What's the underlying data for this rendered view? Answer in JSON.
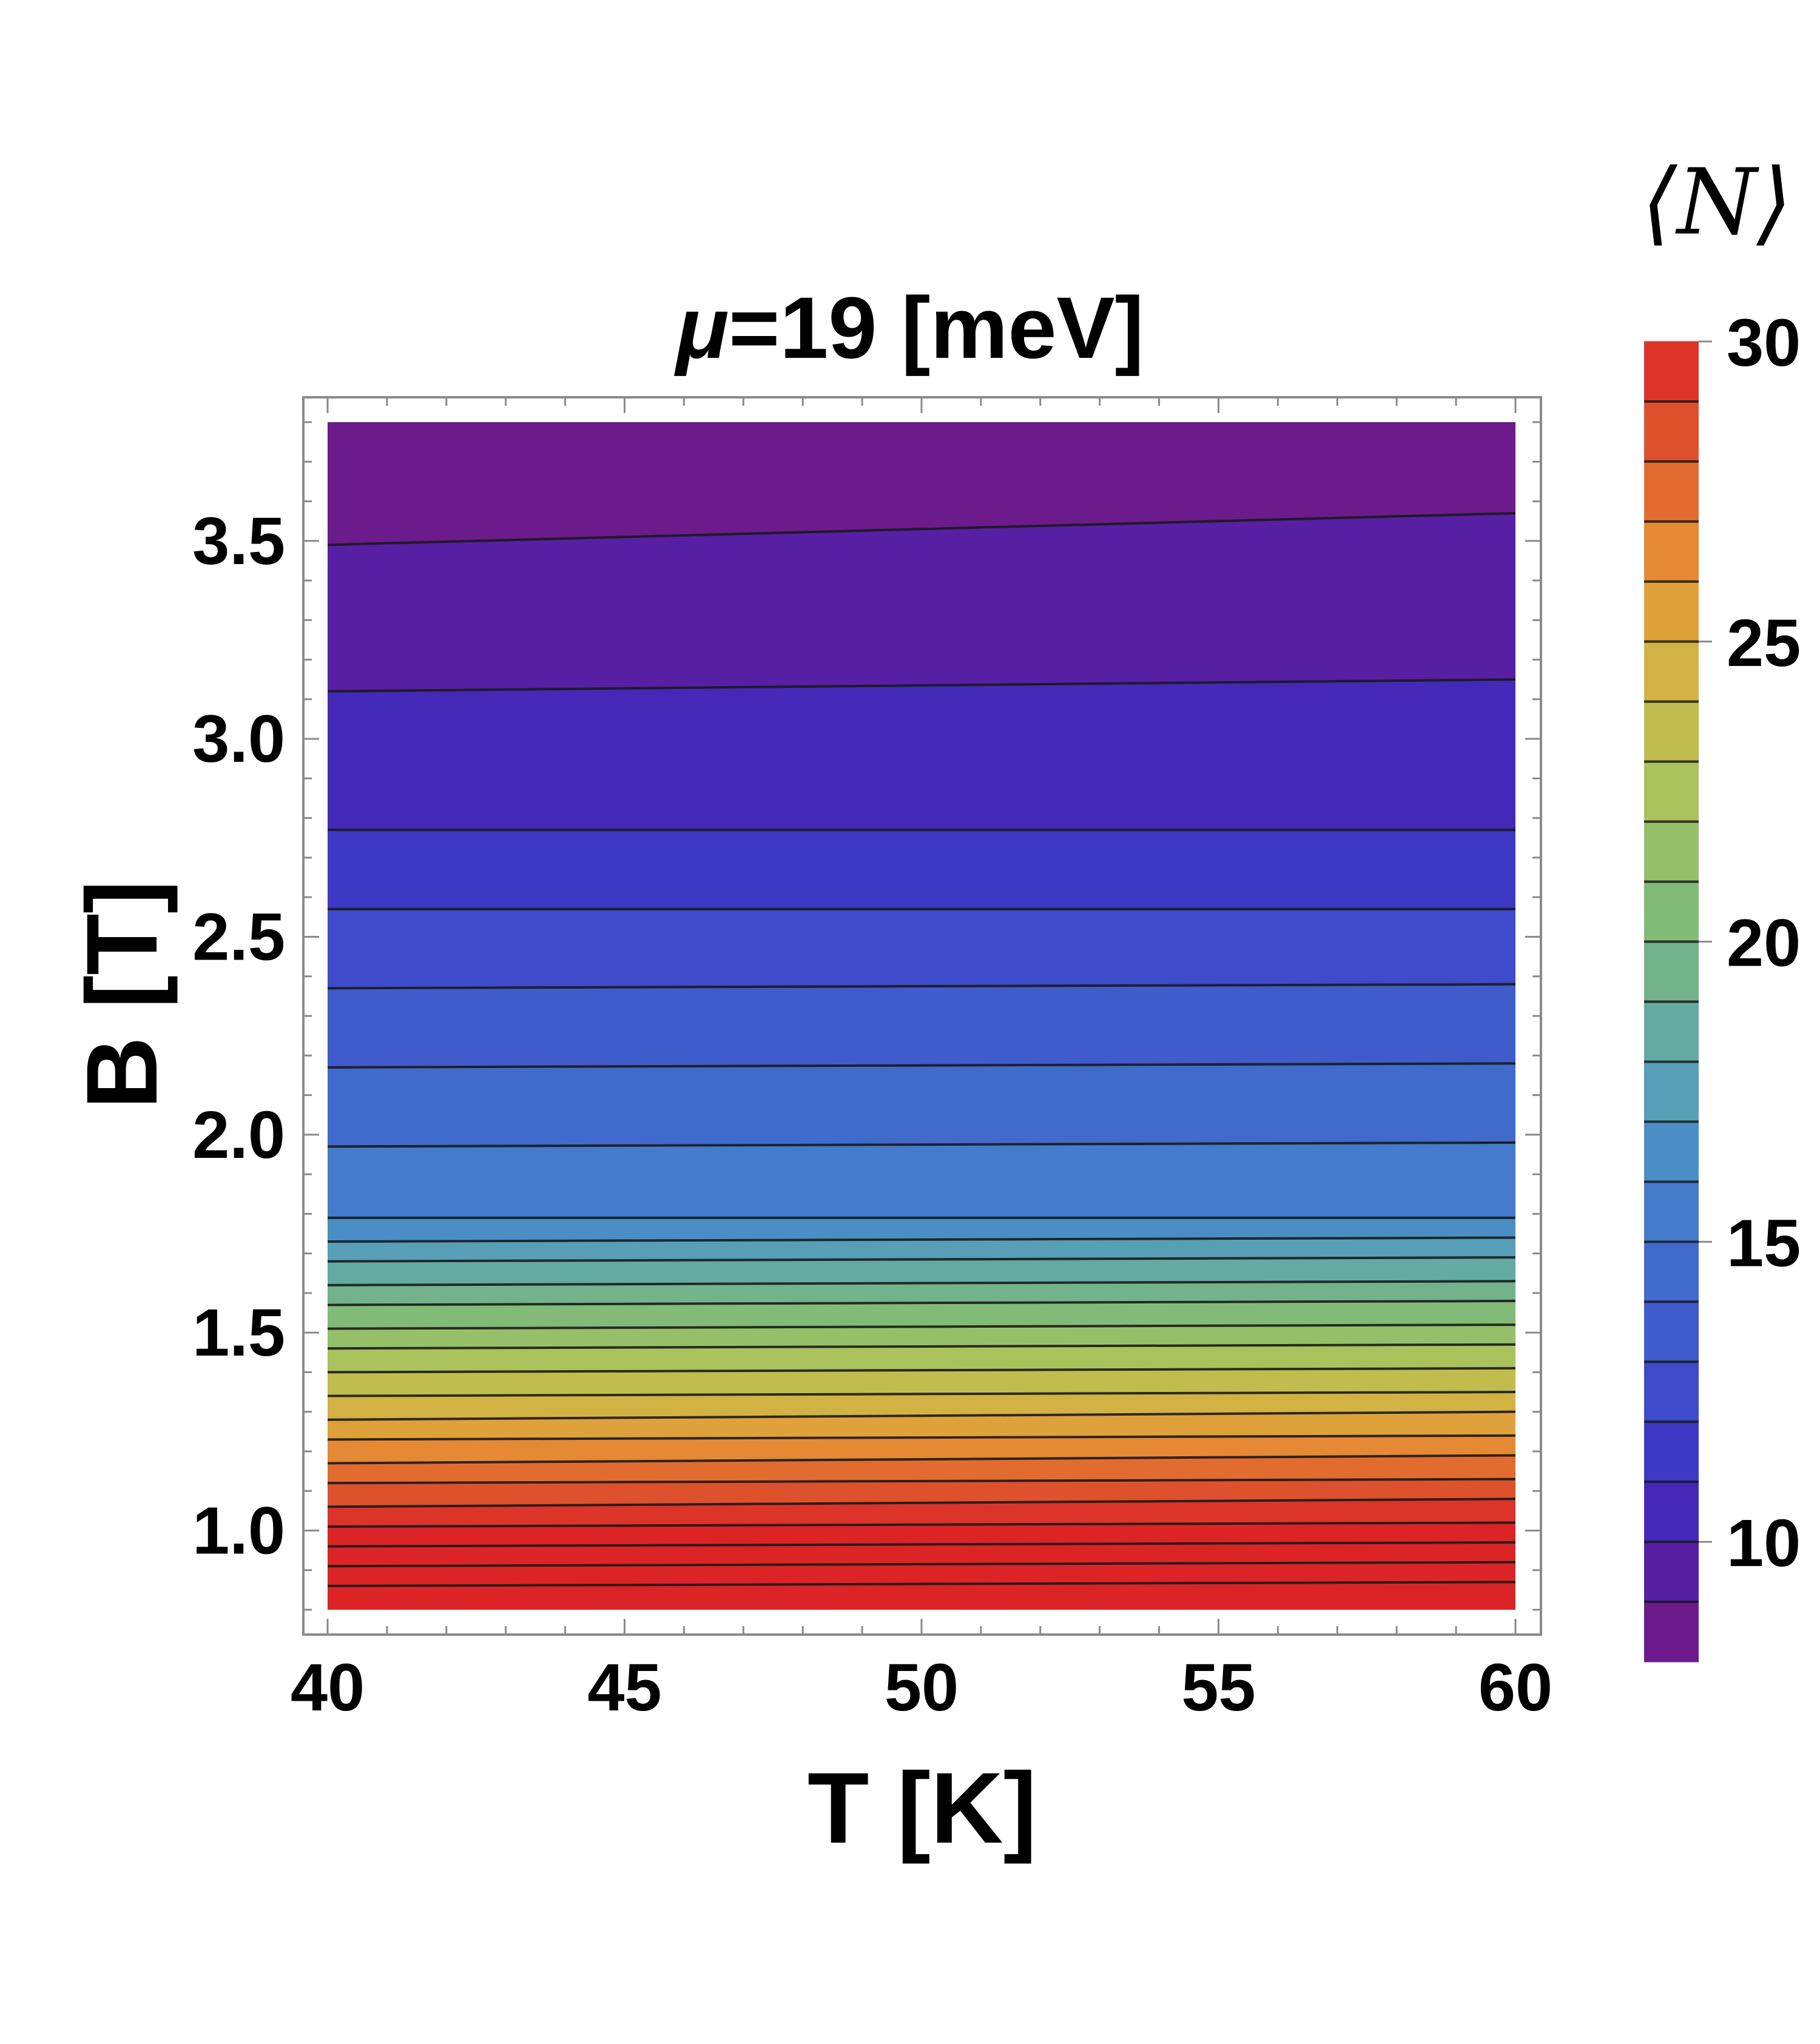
{
  "chart_data": {
    "type": "contour",
    "title_symbol": "μ",
    "title_rest": "=19 [meV]",
    "xlabel": "T [K]",
    "ylabel": "B [T]",
    "xlim": [
      40,
      60
    ],
    "ylim": [
      0.8,
      3.8
    ],
    "xticks": [
      "40",
      "45",
      "50",
      "55",
      "60"
    ],
    "yticks": [
      "1.0",
      "1.5",
      "2.0",
      "2.5",
      "3.0",
      "3.5"
    ],
    "colorbar": {
      "label": "⟨N⟩",
      "range": [
        8,
        30
      ],
      "ticks": [
        "10",
        "15",
        "20",
        "25",
        "30"
      ]
    },
    "contour_levels": [
      {
        "N": 9,
        "B_at_T40": 3.49,
        "B_at_T60": 3.57
      },
      {
        "N": 10,
        "B_at_T40": 3.12,
        "B_at_T60": 3.15
      },
      {
        "N": 11,
        "B_at_T40": 2.77,
        "B_at_T60": 2.77
      },
      {
        "N": 12,
        "B_at_T40": 2.57,
        "B_at_T60": 2.57
      },
      {
        "N": 13,
        "B_at_T40": 2.37,
        "B_at_T60": 2.38
      },
      {
        "N": 14,
        "B_at_T40": 2.17,
        "B_at_T60": 2.18
      },
      {
        "N": 15,
        "B_at_T40": 1.97,
        "B_at_T60": 1.98
      },
      {
        "N": 16,
        "B_at_T40": 1.79,
        "B_at_T60": 1.79
      },
      {
        "N": 17,
        "B_at_T40": 1.73,
        "B_at_T60": 1.74
      },
      {
        "N": 18,
        "B_at_T40": 1.68,
        "B_at_T60": 1.69
      },
      {
        "N": 19,
        "B_at_T40": 1.62,
        "B_at_T60": 1.63
      },
      {
        "N": 20,
        "B_at_T40": 1.57,
        "B_at_T60": 1.58
      },
      {
        "N": 21,
        "B_at_T40": 1.51,
        "B_at_T60": 1.52
      },
      {
        "N": 22,
        "B_at_T40": 1.46,
        "B_at_T60": 1.47
      },
      {
        "N": 23,
        "B_at_T40": 1.4,
        "B_at_T60": 1.41
      },
      {
        "N": 24,
        "B_at_T40": 1.34,
        "B_at_T60": 1.35
      },
      {
        "N": 25,
        "B_at_T40": 1.28,
        "B_at_T60": 1.3
      },
      {
        "N": 26,
        "B_at_T40": 1.23,
        "B_at_T60": 1.24
      },
      {
        "N": 27,
        "B_at_T40": 1.17,
        "B_at_T60": 1.19
      },
      {
        "N": 28,
        "B_at_T40": 1.12,
        "B_at_T60": 1.13
      },
      {
        "N": 29,
        "B_at_T40": 1.06,
        "B_at_T60": 1.08
      },
      {
        "N": 30,
        "B_at_T40": 1.01,
        "B_at_T60": 1.02
      },
      {
        "N": 31,
        "B_at_T40": 0.96,
        "B_at_T60": 0.97
      },
      {
        "N": 32,
        "B_at_T40": 0.91,
        "B_at_T60": 0.92
      },
      {
        "N": 33,
        "B_at_T40": 0.86,
        "B_at_T60": 0.87
      }
    ],
    "colormap": [
      "#771b7f",
      "#5d1c9e",
      "#4428b8",
      "#3d3cc6",
      "#3f52cc",
      "#3f64cc",
      "#4378cb",
      "#4b8fc6",
      "#5aa3b3",
      "#6aae96",
      "#7db97b",
      "#94c06a",
      "#aec25a",
      "#c8ba49",
      "#dcaa3d",
      "#e58e35",
      "#e26a30",
      "#dc4a2c",
      "#dc2427"
    ]
  }
}
